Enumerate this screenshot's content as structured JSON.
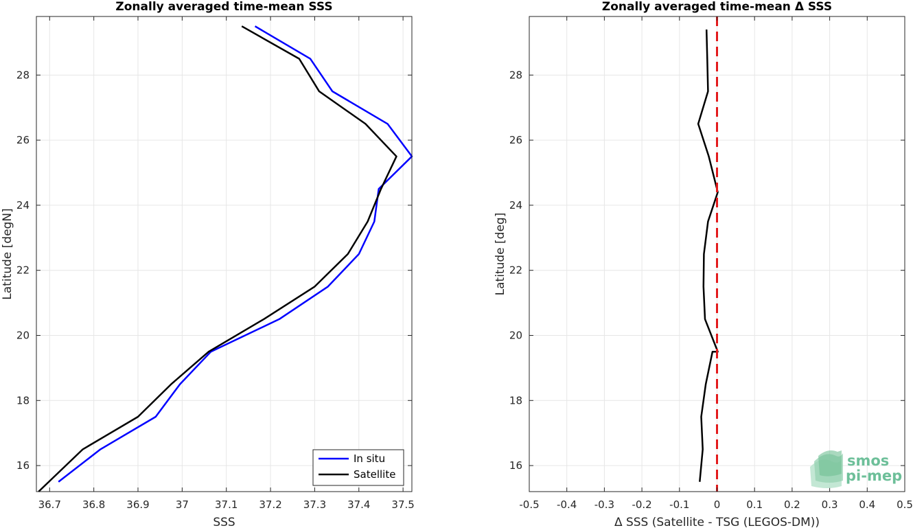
{
  "chart_data": [
    {
      "type": "line",
      "title": "Zonally averaged time-mean SSS",
      "xlabel": "SSS",
      "ylabel": "Latitude [degN]",
      "xlim": [
        36.67,
        37.52
      ],
      "ylim": [
        15.2,
        29.8
      ],
      "xticks": [
        36.7,
        36.8,
        36.9,
        37,
        37.1,
        37.2,
        37.3,
        37.4,
        37.5
      ],
      "xticklabels": [
        "36.7",
        "36.8",
        "36.9",
        "37",
        "37.1",
        "37.2",
        "37.3",
        "37.4",
        "37.5"
      ],
      "yticks": [
        16,
        18,
        20,
        22,
        24,
        26,
        28
      ],
      "yticklabels": [
        "16",
        "18",
        "20",
        "22",
        "24",
        "26",
        "28"
      ],
      "grid": true,
      "legend_position": "bottom-right",
      "series": [
        {
          "name": "In situ",
          "color": "#0000ff",
          "x": [
            36.72,
            36.815,
            36.94,
            36.995,
            37.065,
            37.22,
            37.33,
            37.4,
            37.435,
            37.445,
            37.52,
            37.465,
            37.34,
            37.29,
            37.165
          ],
          "y": [
            15.5,
            16.5,
            17.5,
            18.5,
            19.5,
            20.5,
            21.5,
            22.5,
            23.5,
            24.5,
            25.5,
            26.5,
            27.5,
            28.5,
            29.5
          ]
        },
        {
          "name": "Satellite",
          "color": "#000000",
          "x": [
            36.675,
            36.775,
            36.9,
            36.975,
            37.06,
            37.185,
            37.3,
            37.375,
            37.42,
            37.45,
            37.485,
            37.415,
            37.31,
            37.265,
            37.135
          ],
          "y": [
            15.2,
            16.5,
            17.5,
            18.5,
            19.5,
            20.5,
            21.5,
            22.5,
            23.5,
            24.5,
            25.5,
            26.5,
            27.5,
            28.5,
            29.5
          ]
        }
      ]
    },
    {
      "type": "line",
      "title": "Zonally averaged time-mean Δ SSS",
      "xlabel": "Δ SSS (Satellite - TSG (LEGOS-DM))",
      "ylabel": "Latitude [deg]",
      "xlim": [
        -0.5,
        0.5
      ],
      "ylim": [
        15.2,
        29.8
      ],
      "xticks": [
        -0.5,
        -0.4,
        -0.3,
        -0.2,
        -0.1,
        0,
        0.1,
        0.2,
        0.3,
        0.4,
        0.5
      ],
      "xticklabels": [
        "-0.5",
        "-0.4",
        "-0.3",
        "-0.2",
        "-0.1",
        "0",
        "0.1",
        "0.2",
        "0.3",
        "0.4",
        "0.5"
      ],
      "yticks": [
        16,
        18,
        20,
        22,
        24,
        26,
        28
      ],
      "yticklabels": [
        "16",
        "18",
        "20",
        "22",
        "24",
        "26",
        "28"
      ],
      "grid": true,
      "reference_line": {
        "x": 0,
        "color": "#e31a1c",
        "style": "dashed"
      },
      "series": [
        {
          "color": "#000000",
          "x": [
            -0.046,
            -0.038,
            -0.042,
            -0.03,
            -0.012,
            0.002,
            -0.032,
            -0.036,
            -0.035,
            -0.024,
            0.002,
            -0.022,
            -0.05,
            -0.024,
            -0.026,
            -0.028
          ],
          "y": [
            15.5,
            16.5,
            17.5,
            18.5,
            19.5,
            19.5,
            20.5,
            21.5,
            22.5,
            23.5,
            24.4,
            25.5,
            26.5,
            27.5,
            28.5,
            29.4
          ]
        }
      ]
    }
  ],
  "logo": {
    "line1": "smos",
    "line2": "pi-mep",
    "color": "#6dbf99"
  }
}
